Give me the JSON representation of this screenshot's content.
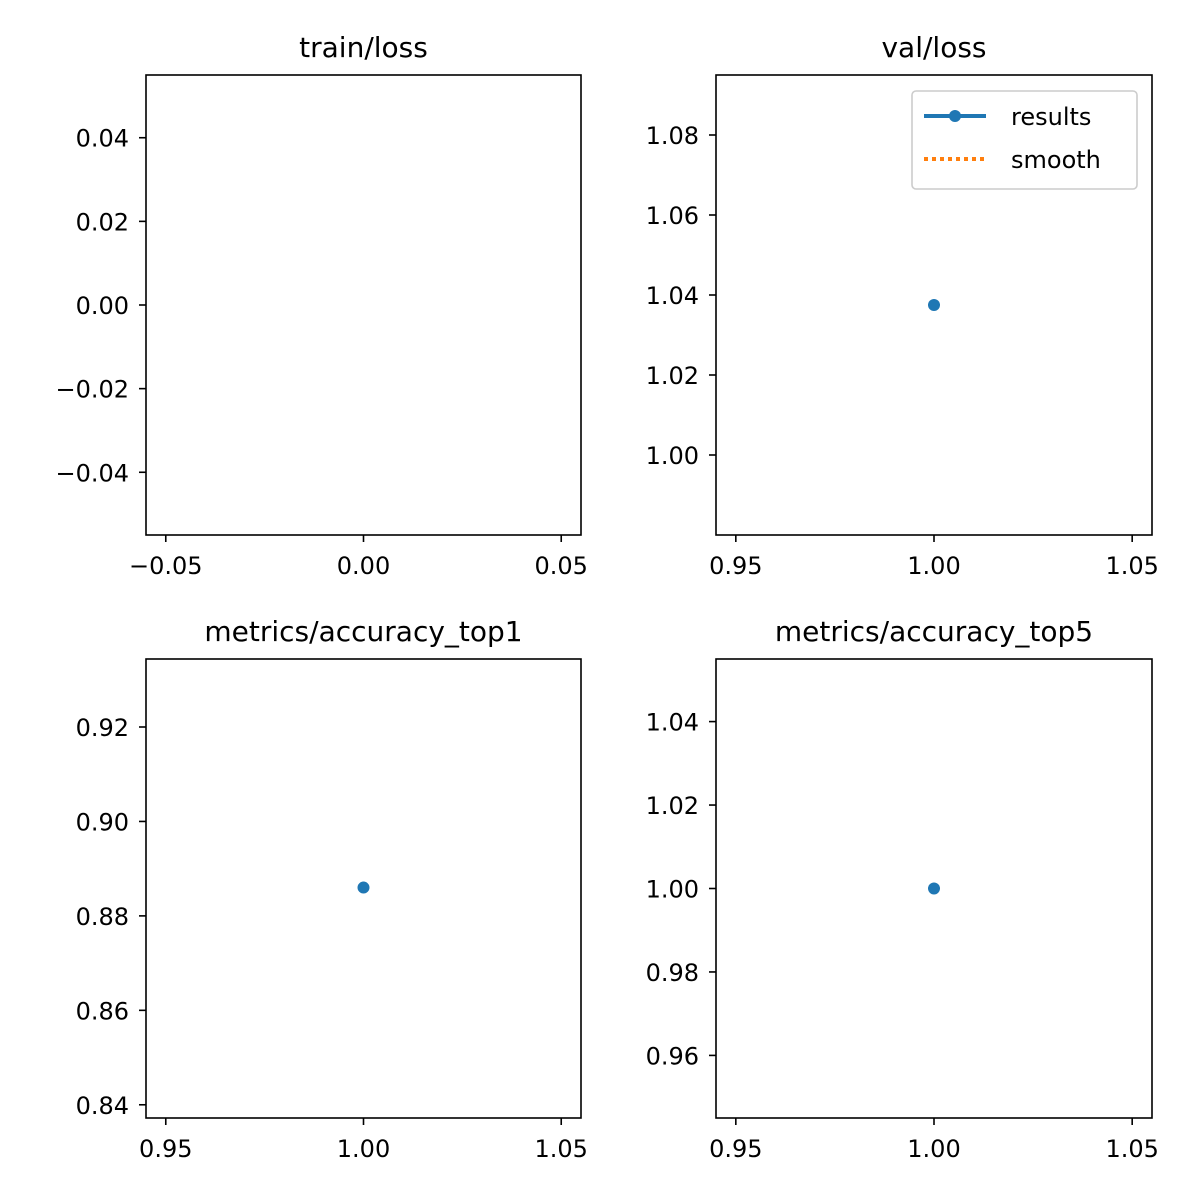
{
  "colors": {
    "results": "#1f77b4",
    "smooth": "#ff7f0e",
    "axes": "#000000",
    "background": "#ffffff"
  },
  "chart_data": [
    {
      "type": "line",
      "title": "train/loss",
      "xlim": [
        -0.055,
        0.055
      ],
      "ylim": [
        -0.055,
        0.055
      ],
      "xticks": [
        -0.05,
        0.0,
        0.05
      ],
      "xtick_labels": [
        "−0.05",
        "0.00",
        "0.05"
      ],
      "yticks": [
        0.04,
        0.02,
        0.0,
        -0.02,
        -0.04
      ],
      "ytick_labels": [
        "0.04",
        "0.02",
        "0.00",
        "−0.02",
        "−0.04"
      ],
      "series": [
        {
          "name": "results",
          "x": [],
          "y": []
        },
        {
          "name": "smooth",
          "x": [],
          "y": []
        }
      ]
    },
    {
      "type": "line",
      "title": "val/loss",
      "xlim": [
        0.945,
        1.055
      ],
      "ylim": [
        0.98,
        1.095
      ],
      "xticks": [
        0.95,
        1.0,
        1.05
      ],
      "xtick_labels": [
        "0.95",
        "1.00",
        "1.05"
      ],
      "yticks": [
        1.08,
        1.06,
        1.04,
        1.02,
        1.0
      ],
      "ytick_labels": [
        "1.08",
        "1.06",
        "1.04",
        "1.02",
        "1.00"
      ],
      "series": [
        {
          "name": "results",
          "x": [
            1.0
          ],
          "y": [
            1.0375
          ]
        },
        {
          "name": "smooth",
          "x": [],
          "y": []
        }
      ],
      "legend": {
        "placement": "top-right",
        "entries": [
          "results",
          "smooth"
        ]
      }
    },
    {
      "type": "line",
      "title": "metrics/accuracy_top1",
      "xlim": [
        0.945,
        1.055
      ],
      "ylim": [
        0.8372,
        0.9344
      ],
      "xticks": [
        0.95,
        1.0,
        1.05
      ],
      "xtick_labels": [
        "0.95",
        "1.00",
        "1.05"
      ],
      "yticks": [
        0.92,
        0.9,
        0.88,
        0.86,
        0.84
      ],
      "ytick_labels": [
        "0.92",
        "0.90",
        "0.88",
        "0.86",
        "0.84"
      ],
      "series": [
        {
          "name": "results",
          "x": [
            1.0
          ],
          "y": [
            0.886
          ]
        },
        {
          "name": "smooth",
          "x": [],
          "y": []
        }
      ]
    },
    {
      "type": "line",
      "title": "metrics/accuracy_top5",
      "xlim": [
        0.945,
        1.055
      ],
      "ylim": [
        0.945,
        1.055
      ],
      "xticks": [
        0.95,
        1.0,
        1.05
      ],
      "xtick_labels": [
        "0.95",
        "1.00",
        "1.05"
      ],
      "yticks": [
        1.04,
        1.02,
        1.0,
        0.98,
        0.96
      ],
      "ytick_labels": [
        "1.04",
        "1.02",
        "1.00",
        "0.98",
        "0.96"
      ],
      "series": [
        {
          "name": "results",
          "x": [
            1.0
          ],
          "y": [
            1.0
          ]
        },
        {
          "name": "smooth",
          "x": [],
          "y": []
        }
      ]
    }
  ]
}
